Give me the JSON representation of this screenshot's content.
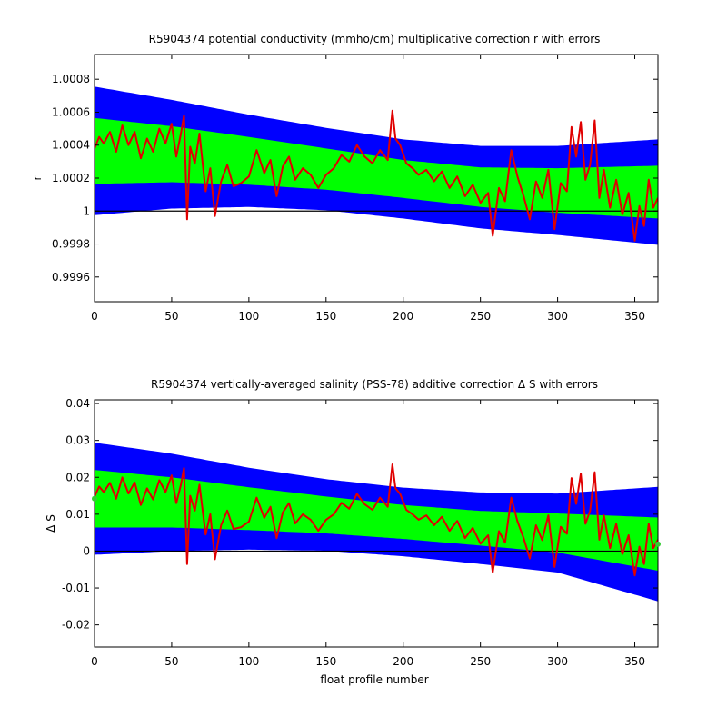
{
  "chart_data": [
    {
      "type": "area",
      "title": "R5904374 potential conductivity (mmho/cm) multiplicative correction r with errors",
      "xlabel": "",
      "ylabel": "r",
      "xlim": [
        0,
        365
      ],
      "ylim": [
        0.99945,
        1.00095
      ],
      "x_ticks": [
        0,
        50,
        100,
        150,
        200,
        250,
        300,
        350
      ],
      "x_tick_labels": [
        "0",
        "50",
        "100",
        "150",
        "200",
        "250",
        "300",
        "350"
      ],
      "y_ticks": [
        0.9996,
        0.9998,
        1.0,
        1.0002,
        1.0004,
        1.0006,
        1.0008
      ],
      "y_tick_labels": [
        "0.9996",
        "0.9998",
        "1",
        "1.0002",
        "1.0004",
        "1.0006",
        "1.0008"
      ],
      "reference_line": 1.0,
      "colors": {
        "outer_band": "#0000ff",
        "inner_band": "#00ff00",
        "series": "#e00000",
        "reference": "#000000"
      },
      "fit": {
        "x": [
          0,
          50,
          100,
          150,
          200,
          250,
          300,
          365
        ],
        "center": [
          1.000365,
          1.000345,
          1.000305,
          1.000255,
          1.000195,
          1.000145,
          1.000125,
          1.000115
        ]
      },
      "inner_band_halfwidth": [
        0.0002,
        0.00017,
        0.000145,
        0.000125,
        0.000115,
        0.00012,
        0.000135,
        0.00016
      ],
      "outer_band_halfwidth": [
        0.00039,
        0.00033,
        0.00028,
        0.00025,
        0.00024,
        0.00025,
        0.00027,
        0.00032
      ],
      "series": [
        {
          "x": [
            0,
            3,
            6,
            10,
            14,
            18,
            22,
            26,
            30,
            34,
            38,
            42,
            46,
            50,
            53,
            56,
            58,
            60,
            62,
            65,
            68,
            72,
            75,
            78,
            82,
            86,
            90,
            95,
            100,
            105,
            110,
            114,
            118,
            122,
            126,
            130,
            135,
            140,
            145,
            150,
            155,
            160,
            165,
            170,
            175,
            180,
            185,
            190,
            193,
            195,
            198,
            202,
            206,
            210,
            215,
            220,
            225,
            230,
            235,
            240,
            245,
            250,
            255,
            258,
            262,
            266,
            270,
            274,
            278,
            282,
            286,
            290,
            294,
            298,
            302,
            306,
            309,
            312,
            315,
            318,
            321,
            324,
            327,
            330,
            334,
            338,
            342,
            346,
            350,
            353,
            356,
            359,
            362,
            365
          ],
          "y": [
            1.00038,
            1.00045,
            1.00041,
            1.00048,
            1.00036,
            1.00052,
            1.0004,
            1.00048,
            1.00032,
            1.00044,
            1.00036,
            1.0005,
            1.00041,
            1.00053,
            1.00033,
            1.00047,
            1.00058,
            0.99995,
            1.00039,
            1.00029,
            1.00047,
            1.00012,
            1.00026,
            0.99997,
            1.00018,
            1.00028,
            1.00015,
            1.00017,
            1.00021,
            1.00037,
            1.00023,
            1.00031,
            1.00009,
            1.00027,
            1.00033,
            1.00019,
            1.00026,
            1.00022,
            1.00014,
            1.00022,
            1.00026,
            1.00034,
            1.0003,
            1.0004,
            1.00033,
            1.00029,
            1.00037,
            1.00031,
            1.00061,
            1.00044,
            1.0004,
            1.00029,
            1.00026,
            1.00022,
            1.00025,
            1.00018,
            1.00024,
            1.00014,
            1.00021,
            1.00009,
            1.00016,
            1.00005,
            1.00011,
            0.99985,
            1.00014,
            1.00006,
            1.00037,
            1.00021,
            1.00009,
            0.99995,
            1.00018,
            1.00008,
            1.00025,
            0.99989,
            1.00017,
            1.00012,
            1.00051,
            1.00033,
            1.00054,
            1.00019,
            1.00028,
            1.00055,
            1.00008,
            1.00025,
            1.00002,
            1.00019,
            0.99998,
            1.00011,
            0.99982,
            1.00003,
            0.99991,
            1.00019,
            1.00002,
            1.00008
          ]
        }
      ]
    },
    {
      "type": "area",
      "title": "R5904374 vertically-averaged salinity (PSS-78) additive correction Δ S with errors",
      "xlabel": "float profile number",
      "ylabel": "Δ S",
      "xlim": [
        0,
        365
      ],
      "ylim": [
        -0.026,
        0.041
      ],
      "x_ticks": [
        0,
        50,
        100,
        150,
        200,
        250,
        300,
        350
      ],
      "x_tick_labels": [
        "0",
        "50",
        "100",
        "150",
        "200",
        "250",
        "300",
        "350"
      ],
      "y_ticks": [
        -0.02,
        -0.01,
        0,
        0.01,
        0.02,
        0.03,
        0.04
      ],
      "y_tick_labels": [
        "-0.02",
        "-0.01",
        "0",
        "0.01",
        "0.02",
        "0.03",
        "0.04"
      ],
      "reference_line": 0,
      "colors": {
        "outer_band": "#0000ff",
        "inner_band": "#00ff00",
        "series": "#e00000",
        "reference": "#000000",
        "endpoints": "#33cc33"
      },
      "fit": {
        "x": [
          0,
          50,
          100,
          150,
          200,
          250,
          300,
          365
        ],
        "center": [
          0.0142,
          0.0132,
          0.0115,
          0.0098,
          0.0079,
          0.0062,
          0.0049,
          0.0019
        ]
      },
      "inner_band_halfwidth": [
        0.0078,
        0.0068,
        0.0058,
        0.005,
        0.0046,
        0.0047,
        0.0053,
        0.0072
      ],
      "outer_band_halfwidth": [
        0.0152,
        0.0132,
        0.0111,
        0.0097,
        0.0093,
        0.0097,
        0.0107,
        0.0155
      ],
      "endpoint_markers": [
        {
          "x": 0,
          "y": 0.0142
        },
        {
          "x": 365,
          "y": 0.0019
        }
      ],
      "series": [
        {
          "x": [
            0,
            3,
            6,
            10,
            14,
            18,
            22,
            26,
            30,
            34,
            38,
            42,
            46,
            50,
            53,
            56,
            58,
            60,
            62,
            65,
            68,
            72,
            75,
            78,
            82,
            86,
            90,
            95,
            100,
            105,
            110,
            114,
            118,
            122,
            126,
            130,
            135,
            140,
            145,
            150,
            155,
            160,
            165,
            170,
            175,
            180,
            185,
            190,
            193,
            195,
            198,
            202,
            206,
            210,
            215,
            220,
            225,
            230,
            235,
            240,
            245,
            250,
            255,
            258,
            262,
            266,
            270,
            274,
            278,
            282,
            286,
            290,
            294,
            298,
            302,
            306,
            309,
            312,
            315,
            318,
            321,
            324,
            327,
            330,
            334,
            338,
            342,
            346,
            350,
            353,
            356,
            359,
            362,
            365
          ],
          "y": [
            0.0148,
            0.0175,
            0.016,
            0.0185,
            0.0142,
            0.02,
            0.0156,
            0.0186,
            0.0125,
            0.017,
            0.014,
            0.0192,
            0.016,
            0.0205,
            0.013,
            0.018,
            0.0225,
            -0.0035,
            0.015,
            0.011,
            0.018,
            0.0045,
            0.01,
            -0.0022,
            0.007,
            0.011,
            0.006,
            0.0065,
            0.008,
            0.0145,
            0.009,
            0.012,
            0.0035,
            0.0105,
            0.013,
            0.0075,
            0.01,
            0.0085,
            0.0055,
            0.0085,
            0.01,
            0.0131,
            0.0115,
            0.0155,
            0.0127,
            0.0112,
            0.0145,
            0.012,
            0.0235,
            0.017,
            0.0155,
            0.0112,
            0.01,
            0.0085,
            0.0097,
            0.007,
            0.0093,
            0.0055,
            0.0082,
            0.0035,
            0.0063,
            0.002,
            0.0043,
            -0.0058,
            0.0054,
            0.0023,
            0.0145,
            0.0081,
            0.0035,
            -0.002,
            0.007,
            0.003,
            0.0097,
            -0.0043,
            0.0066,
            0.0047,
            0.0198,
            0.0128,
            0.021,
            0.0074,
            0.0109,
            0.0214,
            0.0031,
            0.0097,
            0.0008,
            0.0074,
            -0.0008,
            0.0043,
            -0.0066,
            0.0012,
            -0.0035,
            0.0074,
            0.0008,
            0.0031
          ]
        }
      ]
    }
  ]
}
